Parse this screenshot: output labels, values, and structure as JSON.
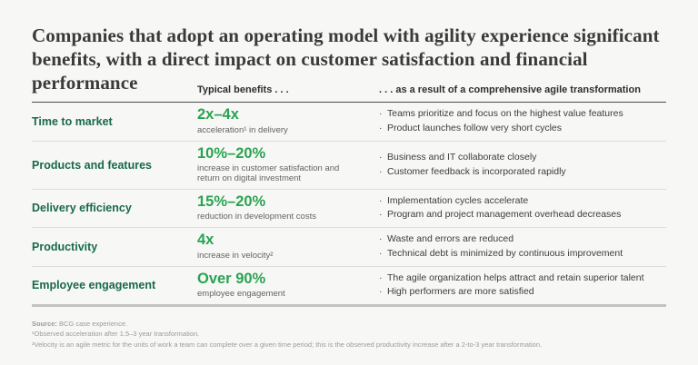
{
  "page": {
    "title": "Companies that adopt an operating model with agility experience significant benefits, with a direct impact on customer satisfaction and financial performance"
  },
  "table": {
    "benefits_header": "Typical benefits . . .",
    "results_header": ". . . as a result of a comprehensive agile transformation",
    "rows": [
      {
        "label": "Time to market",
        "stat": "2x–4x",
        "stat_caption": "acceleration¹ in delivery",
        "bullets": [
          "Teams prioritize and focus on the highest value features",
          "Product launches follow very short cycles"
        ]
      },
      {
        "label": "Products and features",
        "stat": "10%–20%",
        "stat_caption": "increase in customer satisfaction and return on digital investment",
        "bullets": [
          "Business and IT collaborate closely",
          "Customer feedback is incorporated rapidly"
        ]
      },
      {
        "label": "Delivery efficiency",
        "stat": "15%–20%",
        "stat_caption": "reduction in development costs",
        "bullets": [
          "Implementation cycles accelerate",
          "Program and project management overhead decreases"
        ]
      },
      {
        "label": "Productivity",
        "stat": "4x",
        "stat_caption": "increase in velocity²",
        "bullets": [
          "Waste and errors are reduced",
          "Technical debt is minimized by continuous improvement"
        ]
      },
      {
        "label": "Employee engagement",
        "stat": "Over 90%",
        "stat_caption": "employee engagement",
        "bullets": [
          "The agile organization helps attract and retain superior talent",
          "High performers are more satisfied"
        ]
      }
    ]
  },
  "footnotes": {
    "source_label": "Source:",
    "source_text": "BCG case experience.",
    "note1": "¹Observed acceleration after 1.5–3 year transformation.",
    "note2": "²Velocity is an agile metric for the units of work a team can complete over a given time period; this is the observed productivity increase after a 2-to-3 year transformation."
  },
  "colors": {
    "background": "#f7f7f6",
    "label_green": "#18694b",
    "stat_green": "#2aa351",
    "rule_dark": "#4a4a4a",
    "rule_light": "#dcdcdc"
  }
}
